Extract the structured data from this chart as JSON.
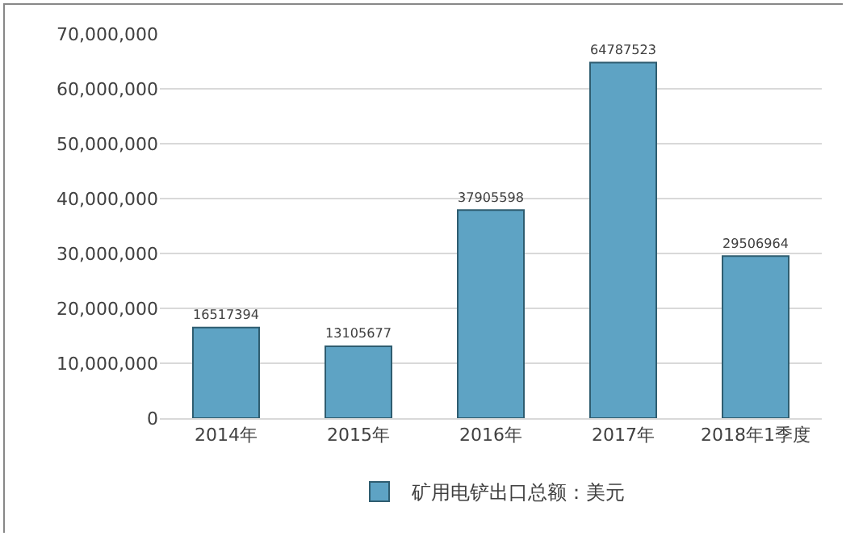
{
  "chart_data": {
    "type": "bar",
    "categories": [
      "2014年",
      "2015年",
      "2016年",
      "2017年",
      "2018年1季度"
    ],
    "series": [
      {
        "name": "矿用电铲出口总额：美元",
        "color": "#5ea3c4",
        "values": [
          16517394,
          13105677,
          37905598,
          64787523,
          29506964
        ]
      }
    ],
    "ylim": [
      0,
      70000000
    ],
    "yticks": [
      0,
      {
        "value": 10000000,
        "label": "10,000,000"
      },
      {
        "value": 20000000,
        "label": "20,000,000"
      },
      {
        "value": 30000000,
        "label": "30,000,000"
      },
      {
        "value": 40000000,
        "label": "40,000,000"
      },
      {
        "value": 50000000,
        "label": "50,000,000"
      },
      {
        "value": 60000000,
        "label": "60,000,000"
      },
      {
        "value": 70000000,
        "label": "70,000,000"
      }
    ],
    "grid": "y",
    "legend": "bottom",
    "data_labels": true
  }
}
